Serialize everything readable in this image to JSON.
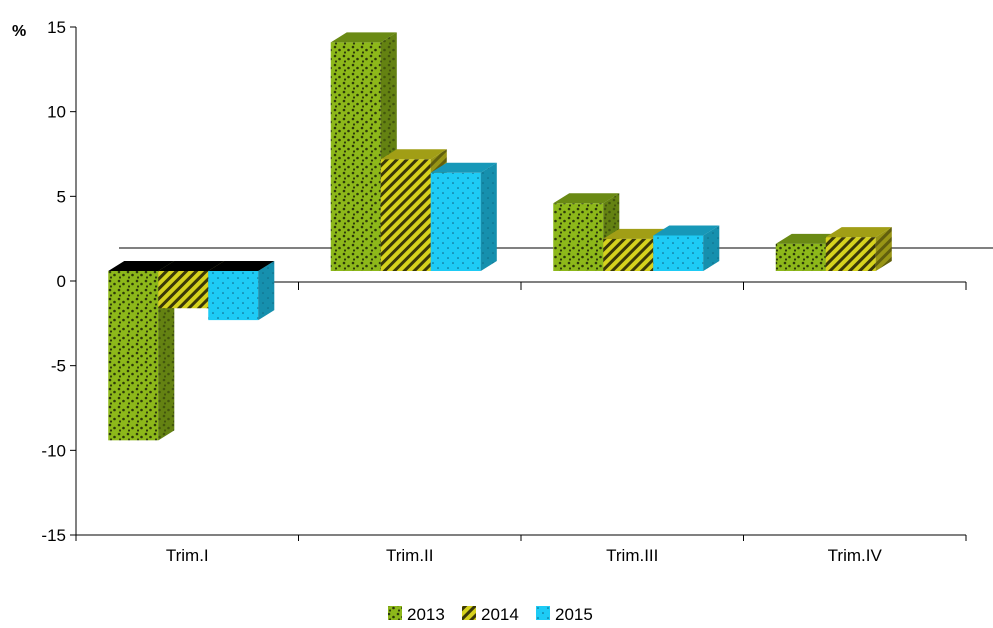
{
  "chart_data": {
    "type": "bar",
    "style": "3d-clustered-column",
    "y_unit_label": "%",
    "categories": [
      "Trim.I",
      "Trim.II",
      "Trim.III",
      "Trim.IV"
    ],
    "series": [
      {
        "name": "2013",
        "values": [
          -10.0,
          13.5,
          4.0,
          1.6
        ],
        "color": "#8db81a",
        "pattern": "dots"
      },
      {
        "name": "2014",
        "values": [
          -2.2,
          6.6,
          1.9,
          2.0
        ],
        "color": "#d6d21d",
        "pattern": "diagonal-stripes"
      },
      {
        "name": "2015",
        "values": [
          -2.9,
          5.8,
          2.1,
          null
        ],
        "color": "#1ecbf5",
        "pattern": "fine-dots"
      }
    ],
    "ylim": [
      -15,
      15
    ],
    "yticks": [
      -15,
      -10,
      -5,
      0,
      5,
      10,
      15
    ],
    "reference_line_value": 1.8,
    "legend_position": "bottom"
  }
}
